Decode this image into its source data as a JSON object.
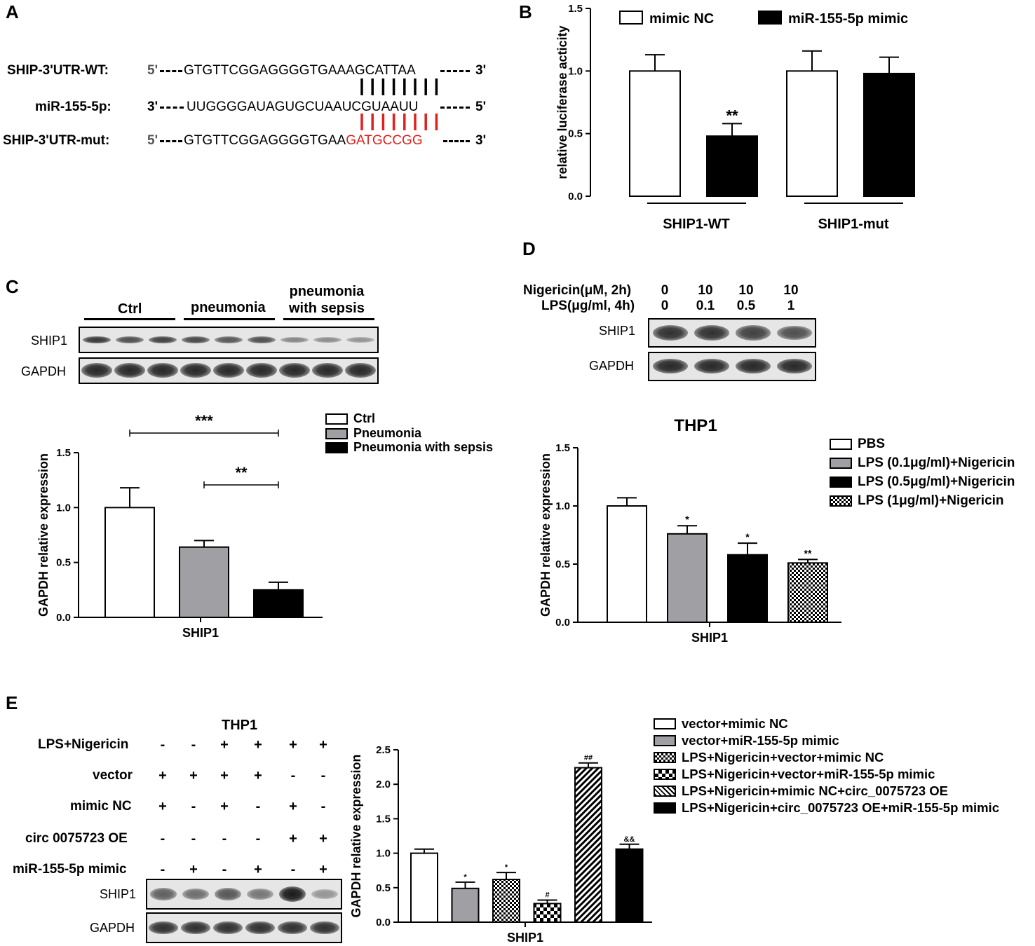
{
  "panels": {
    "a": {
      "label": "A"
    },
    "b": {
      "label": "B"
    },
    "c": {
      "label": "C"
    },
    "d": {
      "label": "D"
    },
    "e": {
      "label": "E"
    }
  },
  "panel_a": {
    "rows": [
      {
        "name": "SHIP-3'UTR-WT:",
        "p5": "5'",
        "seq_plain": "GTGTTCGGAGGGGTGAAAGCATTAA",
        "seq_red": "",
        "p3": "3'"
      },
      {
        "name": "miR-155-5p:",
        "p5": "3'",
        "seq_plain": "UUGGGGAUAGUGCUAAUCGUAAUU",
        "seq_red": "",
        "p3": "5'"
      },
      {
        "name": "SHIP-3'UTR-mut:",
        "p5": "5'",
        "seq_plain": "GTGTTCGGAGGGGTGAA",
        "seq_red": "GATGCCGG",
        "p3": "3'"
      }
    ],
    "pair_count": 8
  },
  "blot_c": {
    "groups": [
      "Ctrl",
      "pneumonia",
      "pneumonia\nwith sepsis"
    ],
    "rows": [
      "SHIP1",
      "GAPDH"
    ],
    "ship1_intensity": [
      0.8,
      0.65,
      0.75,
      0.7,
      0.6,
      0.65,
      0.3,
      0.25,
      0.2
    ],
    "gapdh_intensity": [
      0.9,
      0.9,
      0.9,
      0.9,
      0.9,
      0.9,
      0.9,
      0.9,
      0.9
    ]
  },
  "blot_d": {
    "row1_label": "Nigericin(μM, 2h)",
    "row1_values": [
      "0",
      "10",
      "10",
      "10"
    ],
    "row2_label": "LPS(μg/ml, 4h)",
    "row2_values": [
      "0",
      "0.1",
      "0.5",
      "1"
    ],
    "rows": [
      "SHIP1",
      "GAPDH"
    ],
    "ship1_intensity": [
      0.85,
      0.85,
      0.75,
      0.65
    ],
    "gapdh_intensity": [
      0.9,
      0.9,
      0.9,
      0.9
    ]
  },
  "blot_e": {
    "title": "THP1",
    "conditions": [
      {
        "label": "LPS+Nigericin",
        "values": [
          "-",
          "-",
          "+",
          "+",
          "+",
          "+"
        ]
      },
      {
        "label": "vector",
        "values": [
          "+",
          "+",
          "+",
          "+",
          "-",
          "-"
        ]
      },
      {
        "label": "mimic NC",
        "values": [
          "+",
          "-",
          "+",
          "-",
          "+",
          "-"
        ]
      },
      {
        "label": "circ 0075723 OE",
        "values": [
          "-",
          "-",
          "-",
          "-",
          "+",
          "+"
        ]
      },
      {
        "label": "miR-155-5p mimic",
        "values": [
          "-",
          "+",
          "-",
          "+",
          "-",
          "+"
        ]
      }
    ],
    "rows": [
      "SHIP1",
      "GAPDH"
    ],
    "ship1_intensity": [
      0.55,
      0.45,
      0.6,
      0.4,
      1.0,
      0.2
    ],
    "gapdh_intensity": [
      0.85,
      0.85,
      0.85,
      0.85,
      0.85,
      0.85
    ]
  },
  "chart_data": [
    {
      "id": "B",
      "type": "bar",
      "ylabel": "relative luciferase acticity",
      "ylim": [
        0,
        1.5
      ],
      "yticks": [
        "0.0",
        "0.5",
        "1.0",
        "1.5"
      ],
      "groups": [
        "SHIP1-WT",
        "SHIP1-mut"
      ],
      "series": [
        {
          "name": "mimic NC",
          "values": [
            1.0,
            1.0
          ],
          "errors": [
            0.13,
            0.16
          ],
          "fill": "#ffffff"
        },
        {
          "name": "miR-155-5p mimic",
          "values": [
            0.48,
            0.98
          ],
          "errors": [
            0.1,
            0.13
          ],
          "fill": "#000000"
        }
      ],
      "annotations": [
        {
          "group": 0,
          "series": 1,
          "text": "**"
        }
      ],
      "legend": "top"
    },
    {
      "id": "C",
      "type": "bar",
      "ylabel": "GAPDH relative expression",
      "xlabel": "SHIP1",
      "ylim": [
        0,
        1.5
      ],
      "yticks": [
        "0.0",
        "0.5",
        "1.0",
        "1.5"
      ],
      "series": [
        {
          "name": "Ctrl",
          "value": 1.0,
          "error": 0.18,
          "fill": "#ffffff"
        },
        {
          "name": "Pneumonia",
          "value": 0.64,
          "error": 0.06,
          "fill": "#a0a0a4"
        },
        {
          "name": "Pneumonia with sepsis",
          "value": 0.25,
          "error": 0.07,
          "fill": "#000000"
        }
      ],
      "brackets": [
        {
          "from": 0,
          "to": 2,
          "text": "***"
        },
        {
          "from": 1,
          "to": 2,
          "text": "**"
        }
      ],
      "legend": "right"
    },
    {
      "id": "D",
      "type": "bar",
      "title": "THP1",
      "ylabel": "GAPDH relative expression",
      "xlabel": "SHIP1",
      "ylim": [
        0,
        1.5
      ],
      "yticks": [
        "0.0",
        "0.5",
        "1.0",
        "1.5"
      ],
      "series": [
        {
          "name": "PBS",
          "value": 1.0,
          "error": 0.07,
          "fill": "#ffffff",
          "mark": ""
        },
        {
          "name": "LPS (0.1μg/ml)+Nigericin",
          "value": 0.76,
          "error": 0.07,
          "fill": "#a0a0a4",
          "mark": "*"
        },
        {
          "name": "LPS (0.5μg/ml)+Nigericin",
          "value": 0.58,
          "error": 0.1,
          "fill": "#000000",
          "mark": "*"
        },
        {
          "name": "LPS (1μg/ml)+Nigericin",
          "value": 0.51,
          "error": 0.03,
          "fill": "checker",
          "mark": "**"
        }
      ],
      "legend": "top-right"
    },
    {
      "id": "E",
      "type": "bar",
      "ylabel": "GAPDH relative expression",
      "xlabel": "SHIP1",
      "ylim": [
        0,
        2.5
      ],
      "yticks": [
        "0.0",
        "0.5",
        "1.0",
        "1.5",
        "2.0",
        "2.5"
      ],
      "series": [
        {
          "name": "vector+mimic NC",
          "value": 1.0,
          "error": 0.06,
          "fill": "#ffffff",
          "mark": ""
        },
        {
          "name": "vector+miR-155-5p mimic",
          "value": 0.49,
          "error": 0.09,
          "fill": "#a0a0a4",
          "mark": "*"
        },
        {
          "name": "LPS+Nigericin+vector+mimic NC",
          "value": 0.62,
          "error": 0.1,
          "fill": "checker",
          "mark": "*"
        },
        {
          "name": "LPS+Nigericin+vector+miR-155-5p mimic",
          "value": 0.27,
          "error": 0.05,
          "fill": "bigchecker",
          "mark": "#"
        },
        {
          "name": "LPS+Nigericin+mimic NC+circ_0075723 OE",
          "value": 2.24,
          "error": 0.07,
          "fill": "hatch",
          "mark": "##"
        },
        {
          "name": "LPS+Nigericin+circ_0075723 OE+miR-155-5p mimic",
          "value": 1.06,
          "error": 0.07,
          "fill": "#000000",
          "mark": "&&"
        }
      ],
      "legend": "right"
    }
  ]
}
